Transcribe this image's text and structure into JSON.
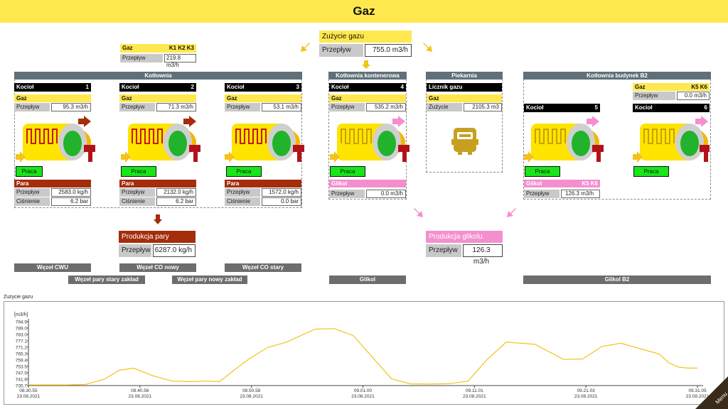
{
  "title": "Gaz",
  "summary": {
    "header": "Zużycie gazu",
    "flow_label": "Przepływ",
    "flow_value": "755.0 m3/h"
  },
  "k123": {
    "gas_label": "Gaz",
    "group": "K1 K2 K3",
    "flow_label": "Przepływ",
    "flow_value": "219.8 m3/h"
  },
  "kotlownia": {
    "title": "Kotłownia"
  },
  "boilers": [
    {
      "label": "Kocioł",
      "num": "1",
      "gas": "Gaz",
      "flow_label": "Przepływ",
      "flow": "95.3 m3/h",
      "btn": "Praca",
      "steam": "Para",
      "steam_flow_label": "Przepływ",
      "steam_flow": "2583.0 kg/h",
      "pressure_label": "Ciśnienie",
      "pressure": "6.2 bar"
    },
    {
      "label": "Kocioł",
      "num": "2",
      "gas": "Gaz",
      "flow_label": "Przepływ",
      "flow": "71.3 m3/h",
      "btn": "Praca",
      "steam": "Para",
      "steam_flow_label": "Przepływ",
      "steam_flow": "2132.0 kg/h",
      "pressure_label": "Ciśnienie",
      "pressure": "6.2 bar"
    },
    {
      "label": "Kocioł",
      "num": "3",
      "gas": "Gaz",
      "flow_label": "Przepływ",
      "flow": "53.1 m3/h",
      "btn": "Praca",
      "steam": "Para",
      "steam_flow_label": "Przepływ",
      "steam_flow": "1572.0 kg/h",
      "pressure_label": "Ciśnienie",
      "pressure": "0.0 bar"
    }
  ],
  "kontener": {
    "title": "Kotłownia kontenerowa",
    "label": "Kocioł",
    "num": "4",
    "gas": "Gaz",
    "flow_label": "Przepływ",
    "flow": "535.2 m3/h",
    "btn": "Praca",
    "glycol": "Glikol",
    "glycol_flow_label": "Przepływ",
    "glycol_flow": "0.0 m3/h"
  },
  "piekarnia": {
    "title": "Piekarnia",
    "meter": "Licznik gazu",
    "gas": "Gaz",
    "use_label": "Zużycie",
    "use_value": "2105.3 m3"
  },
  "b2": {
    "title": "Kotłownia budynek B2",
    "gas": "Gaz",
    "group": "K5 K6",
    "flow_label": "Przepływ",
    "flow": "0.0 m3/h",
    "k5_label": "Kocioł",
    "k5_num": "5",
    "k6_label": "Kocioł",
    "k6_num": "6",
    "btn": "Praca",
    "glycol": "Glikol",
    "glycol_group": "K5 K6",
    "glycol_flow_label": "Przepływ",
    "glycol_flow": "126.3 m3/h"
  },
  "steam_production": {
    "header": "Produkcja pary",
    "flow_label": "Przepływ",
    "flow_value": "6287.0 kg/h"
  },
  "glycol_production": {
    "header": "Produkcja glikolu",
    "flow_label": "Przepływ",
    "flow_value": "126.3 m3/h"
  },
  "nav": {
    "cwu": "Węzeł CWU",
    "co_nowy": "Węzeł CO nowy",
    "co_stary": "Węzeł CO stary",
    "para_stary": "Węzeł pary stary zakład",
    "para_nowy": "Węzeł pary nowy zakład",
    "glikol": "Glikol",
    "glikol_b2": "Glikol B2",
    "menu": "Menu"
  },
  "colors": {
    "gas": "#ffe84d",
    "steam": "#a42d0c",
    "glycol": "#f48fcf",
    "work": "#19e619",
    "line": "#f4c21a"
  },
  "chart_data": {
    "type": "line",
    "title": "Zużycie gazu",
    "ylabel": "[m3/h]",
    "ylim": [
      735.9,
      794.9
    ],
    "yticks": [
      "794.9",
      "789.0",
      "783.0",
      "777.1",
      "771.2",
      "765.3",
      "759.4",
      "753.5",
      "747.5",
      "741.6",
      "735.7"
    ],
    "xticks": [
      {
        "time": "08.30.55",
        "date": "23.08.2021"
      },
      {
        "time": "08.40.56",
        "date": "23.08.2021"
      },
      {
        "time": "08.50.58",
        "date": "23.08.2021"
      },
      {
        "time": "09.01.00",
        "date": "23.08.2021"
      },
      {
        "time": "09.11.01",
        "date": "23.08.2021"
      },
      {
        "time": "09.21.03",
        "date": "23.08.2021"
      },
      {
        "time": "09.31.05",
        "date": "23.08.2021"
      }
    ],
    "x_minutes": [
      0,
      4,
      6,
      8,
      9.5,
      11,
      13,
      15,
      17,
      18.5,
      20,
      21.5,
      23,
      25,
      27,
      30,
      32,
      34,
      36,
      38,
      40,
      42,
      44,
      46,
      48,
      50,
      53,
      56,
      58,
      60,
      62,
      64,
      66,
      67,
      68,
      69,
      70
    ],
    "values": [
      736.5,
      736.5,
      737.0,
      742.0,
      750.0,
      752.0,
      745.0,
      740.0,
      739.6,
      740.0,
      739.5,
      750.0,
      760.0,
      771.0,
      776.0,
      788.0,
      788.5,
      782.0,
      762.0,
      742.0,
      737.5,
      737.3,
      737.6,
      740.0,
      760.0,
      776.0,
      774.0,
      760.0,
      760.5,
      772.0,
      775.0,
      770.0,
      765.0,
      757.0,
      753.0,
      752.0,
      752.0
    ]
  }
}
